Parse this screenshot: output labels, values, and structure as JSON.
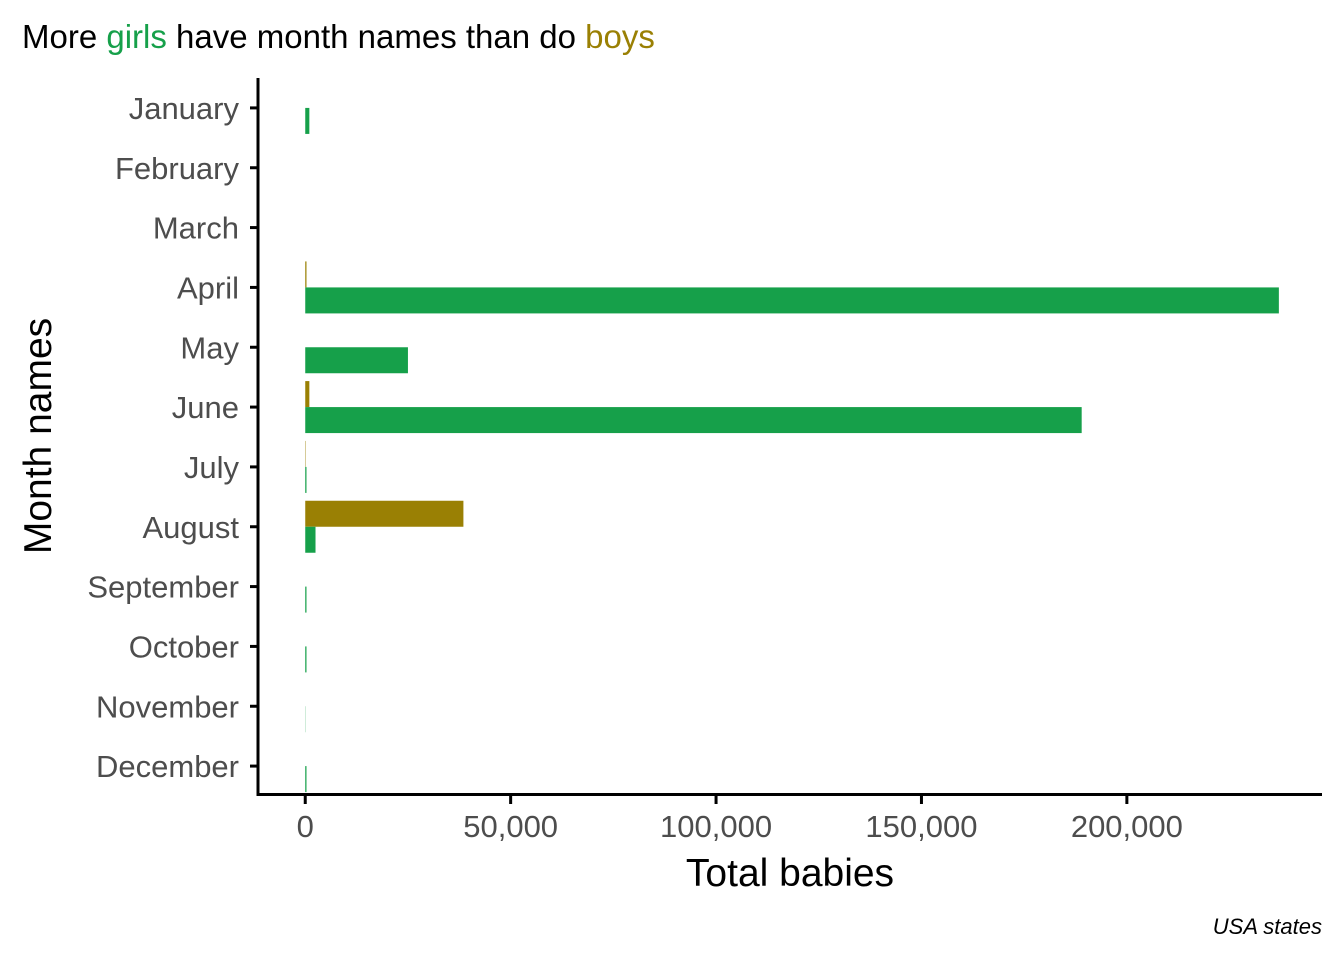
{
  "title": {
    "prefix": "More ",
    "girls_word": "girls",
    "middle": " have month names than do ",
    "boys_word": "boys"
  },
  "caption": "USA states",
  "colors": {
    "girls": "#16a04a",
    "boys": "#9a8004",
    "axis": "#000000",
    "tick_text": "#4d4d4d"
  },
  "chart_data": {
    "type": "bar",
    "orientation": "horizontal",
    "categories": [
      "January",
      "February",
      "March",
      "April",
      "May",
      "June",
      "July",
      "August",
      "September",
      "October",
      "November",
      "December"
    ],
    "series": [
      {
        "name": "boys",
        "values": [
          0,
          0,
          0,
          300,
          0,
          1000,
          100,
          38500,
          0,
          0,
          0,
          0
        ]
      },
      {
        "name": "girls",
        "values": [
          1000,
          0,
          0,
          237000,
          25000,
          189000,
          300,
          2500,
          300,
          300,
          50,
          300
        ]
      }
    ],
    "xlabel": "Total babies",
    "ylabel": "Month names",
    "xlim": [
      -11500,
      247500
    ],
    "xticks": [
      0,
      50000,
      100000,
      150000,
      200000
    ],
    "xtick_labels": [
      "0",
      "50,000",
      "100,000",
      "150,000",
      "200,000"
    ],
    "grid": false,
    "legend": "none (series named in title)"
  }
}
